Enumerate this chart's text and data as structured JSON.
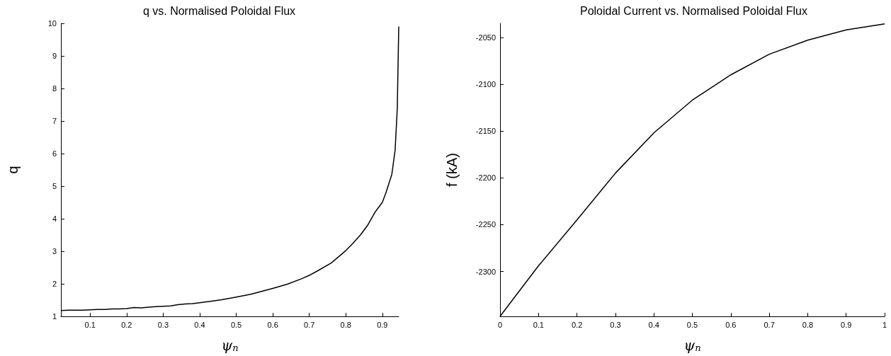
{
  "chart_data": [
    {
      "type": "line",
      "title": "q vs. Normalised Poloidal Flux",
      "xlabel": "ψ$_{n}$",
      "ylabel": "q",
      "x": [
        0.021,
        0.04,
        0.06,
        0.08,
        0.1,
        0.12,
        0.14,
        0.16,
        0.18,
        0.2,
        0.22,
        0.24,
        0.26,
        0.28,
        0.32,
        0.34,
        0.36,
        0.38,
        0.4,
        0.44,
        0.46,
        0.5,
        0.54,
        0.58,
        0.6,
        0.64,
        0.68,
        0.7,
        0.72,
        0.76,
        0.8,
        0.82,
        0.84,
        0.86,
        0.88,
        0.9,
        0.91,
        0.926,
        0.935,
        0.941,
        0.945
      ],
      "series": [
        {
          "color": "#000000",
          "values": [
            1.18,
            1.19,
            1.19,
            1.19,
            1.2,
            1.21,
            1.21,
            1.23,
            1.23,
            1.24,
            1.27,
            1.26,
            1.28,
            1.3,
            1.32,
            1.36,
            1.38,
            1.39,
            1.42,
            1.48,
            1.51,
            1.59,
            1.68,
            1.8,
            1.86,
            1.99,
            2.16,
            2.26,
            2.38,
            2.64,
            3.02,
            3.25,
            3.5,
            3.8,
            4.2,
            4.5,
            4.8,
            5.36,
            6.1,
            7.4,
            9.9
          ]
        }
      ],
      "xlim": [
        0.02,
        0.945
      ],
      "xticks": [
        0.1,
        0.2,
        0.3,
        0.4,
        0.5,
        0.6,
        0.7,
        0.8,
        0.9
      ],
      "ylim": [
        1,
        10
      ],
      "yticks": [
        1,
        2,
        3,
        4,
        5,
        6,
        7,
        8,
        9,
        10
      ],
      "grid": false,
      "marker": "none",
      "line_style": "solid"
    },
    {
      "type": "line",
      "title": "Poloidal Current vs. Normalised Poloidal Flux",
      "xlabel": "ψ$_{n}$",
      "ylabel": "f (kA)",
      "x": [
        0,
        0.1,
        0.2,
        0.3,
        0.4,
        0.5,
        0.6,
        0.7,
        0.8,
        0.9,
        1
      ],
      "series": [
        {
          "color": "#000000",
          "values": [
            -2348,
            -2294,
            -2245,
            -2195,
            -2152,
            -2117,
            -2090,
            -2068,
            -2053,
            -2042,
            -2035.5
          ]
        }
      ],
      "xlim": [
        0,
        1
      ],
      "xticks": [
        0,
        0.1,
        0.2,
        0.3,
        0.4,
        0.5,
        0.6,
        0.7,
        0.8,
        0.9,
        1
      ],
      "ylim": [
        -2348,
        -2035
      ],
      "yticks": [
        -2300,
        -2250,
        -2200,
        -2150,
        -2100,
        -2050
      ],
      "grid": false,
      "marker": "none",
      "line_style": "solid"
    }
  ]
}
